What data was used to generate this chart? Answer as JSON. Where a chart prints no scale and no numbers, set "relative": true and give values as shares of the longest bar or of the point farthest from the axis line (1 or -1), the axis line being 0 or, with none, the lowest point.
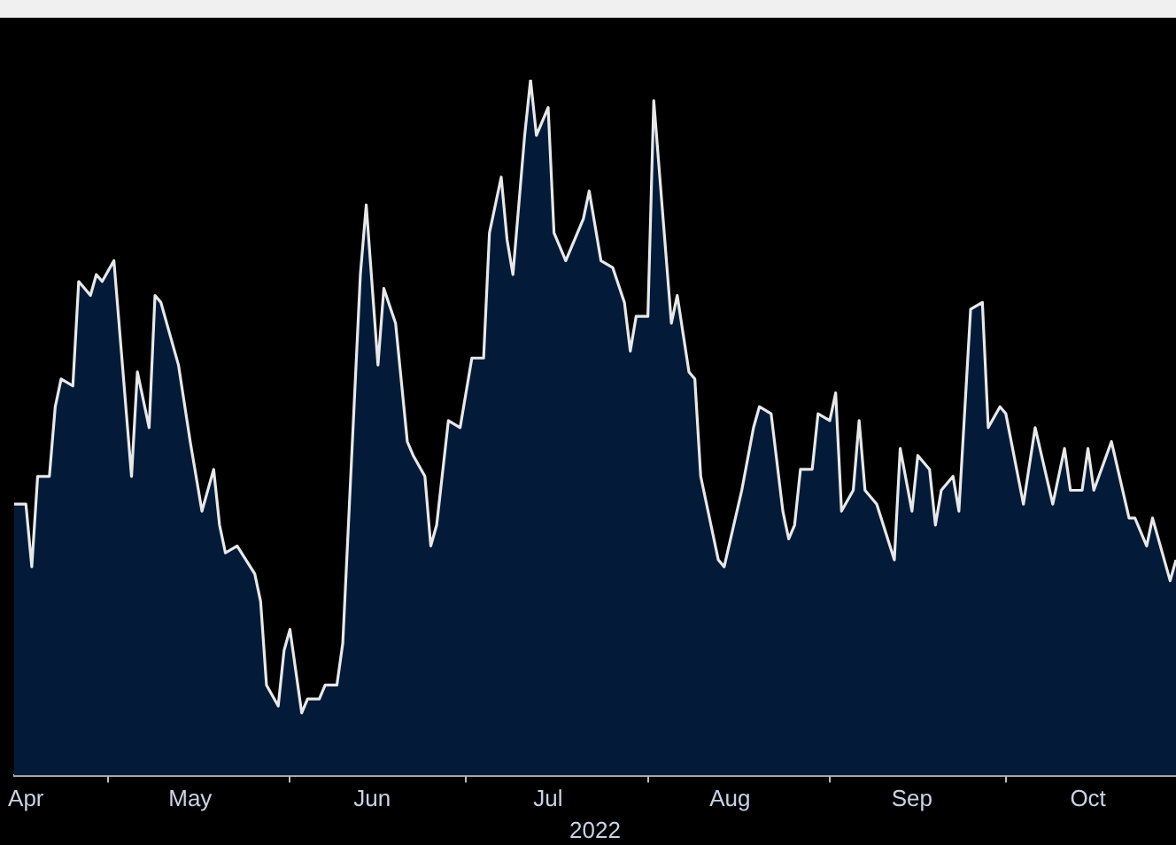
{
  "chart_data": {
    "type": "area",
    "relative": true,
    "xlabel": "2022",
    "legend": false,
    "marker": "none",
    "line_style": "solid",
    "xlim": [
      "2022-04-15",
      "2022-10-30"
    ],
    "xticks": [
      {
        "value": "2022-04-17",
        "label": "Apr"
      },
      {
        "value": "2022-05-01",
        "label": null
      },
      {
        "value": "2022-05-15",
        "label": "May"
      },
      {
        "value": "2022-06-01",
        "label": null
      },
      {
        "value": "2022-06-15",
        "label": "Jun"
      },
      {
        "value": "2022-07-01",
        "label": null
      },
      {
        "value": "2022-07-15",
        "label": "Jul"
      },
      {
        "value": "2022-08-01",
        "label": null
      },
      {
        "value": "2022-08-15",
        "label": "Aug"
      },
      {
        "value": "2022-09-01",
        "label": null
      },
      {
        "value": "2022-09-15",
        "label": "Sep"
      },
      {
        "value": "2022-10-01",
        "label": null
      },
      {
        "value": "2022-10-15",
        "label": "Oct"
      }
    ],
    "x": [
      "2022-04-15",
      "2022-04-17",
      "2022-04-18",
      "2022-04-19",
      "2022-04-21",
      "2022-04-22",
      "2022-04-23",
      "2022-04-25",
      "2022-04-26",
      "2022-04-28",
      "2022-04-29",
      "2022-04-30",
      "2022-05-02",
      "2022-05-05",
      "2022-05-06",
      "2022-05-08",
      "2022-05-09",
      "2022-05-10",
      "2022-05-13",
      "2022-05-15",
      "2022-05-17",
      "2022-05-19",
      "2022-05-20",
      "2022-05-21",
      "2022-05-23",
      "2022-05-26",
      "2022-05-27",
      "2022-05-28",
      "2022-05-30",
      "2022-05-31",
      "2022-06-01",
      "2022-06-03",
      "2022-06-04",
      "2022-06-06",
      "2022-06-07",
      "2022-06-09",
      "2022-06-10",
      "2022-06-13",
      "2022-06-14",
      "2022-06-16",
      "2022-06-17",
      "2022-06-19",
      "2022-06-21",
      "2022-06-22",
      "2022-06-24",
      "2022-06-25",
      "2022-06-26",
      "2022-06-28",
      "2022-06-30",
      "2022-07-02",
      "2022-07-04",
      "2022-07-05",
      "2022-07-07",
      "2022-07-08",
      "2022-07-09",
      "2022-07-11",
      "2022-07-12",
      "2022-07-13",
      "2022-07-15",
      "2022-07-16",
      "2022-07-18",
      "2022-07-21",
      "2022-07-22",
      "2022-07-24",
      "2022-07-26",
      "2022-07-28",
      "2022-07-29",
      "2022-07-30",
      "2022-08-01",
      "2022-08-02",
      "2022-08-05",
      "2022-08-06",
      "2022-08-08",
      "2022-08-09",
      "2022-08-10",
      "2022-08-13",
      "2022-08-14",
      "2022-08-17",
      "2022-08-19",
      "2022-08-20",
      "2022-08-22",
      "2022-08-24",
      "2022-08-25",
      "2022-08-26",
      "2022-08-27",
      "2022-08-29",
      "2022-08-30",
      "2022-09-01",
      "2022-09-02",
      "2022-09-03",
      "2022-09-05",
      "2022-09-06",
      "2022-09-07",
      "2022-09-09",
      "2022-09-12",
      "2022-09-13",
      "2022-09-15",
      "2022-09-16",
      "2022-09-18",
      "2022-09-19",
      "2022-09-20",
      "2022-09-22",
      "2022-09-23",
      "2022-09-25",
      "2022-09-27",
      "2022-09-28",
      "2022-09-30",
      "2022-10-01",
      "2022-10-04",
      "2022-10-06",
      "2022-10-09",
      "2022-10-11",
      "2022-10-12",
      "2022-10-14",
      "2022-10-15",
      "2022-10-16",
      "2022-10-19",
      "2022-10-22",
      "2022-10-23",
      "2022-10-25",
      "2022-10-26",
      "2022-10-29",
      "2022-10-30"
    ],
    "series": [
      {
        "color": "#e8e8e8",
        "values": [
          0.39,
          0.39,
          0.3,
          0.43,
          0.43,
          0.53,
          0.57,
          0.56,
          0.71,
          0.69,
          0.72,
          0.71,
          0.74,
          0.43,
          0.58,
          0.5,
          0.69,
          0.68,
          0.59,
          0.48,
          0.38,
          0.44,
          0.36,
          0.32,
          0.33,
          0.29,
          0.25,
          0.13,
          0.1,
          0.18,
          0.21,
          0.09,
          0.11,
          0.11,
          0.13,
          0.13,
          0.19,
          0.72,
          0.82,
          0.59,
          0.7,
          0.65,
          0.48,
          0.46,
          0.43,
          0.33,
          0.36,
          0.51,
          0.5,
          0.6,
          0.6,
          0.78,
          0.86,
          0.77,
          0.72,
          0.92,
          1,
          0.92,
          0.96,
          0.78,
          0.74,
          0.8,
          0.84,
          0.74,
          0.73,
          0.68,
          0.61,
          0.66,
          0.66,
          0.97,
          0.65,
          0.69,
          0.58,
          0.57,
          0.43,
          0.31,
          0.3,
          0.41,
          0.5,
          0.53,
          0.52,
          0.38,
          0.34,
          0.36,
          0.44,
          0.44,
          0.52,
          0.51,
          0.55,
          0.38,
          0.41,
          0.51,
          0.41,
          0.39,
          0.31,
          0.47,
          0.38,
          0.46,
          0.44,
          0.36,
          0.41,
          0.43,
          0.38,
          0.67,
          0.68,
          0.5,
          0.53,
          0.52,
          0.39,
          0.5,
          0.39,
          0.47,
          0.41,
          0.41,
          0.47,
          0.41,
          0.48,
          0.37,
          0.37,
          0.33,
          0.37,
          0.28,
          0.31
        ]
      }
    ]
  }
}
